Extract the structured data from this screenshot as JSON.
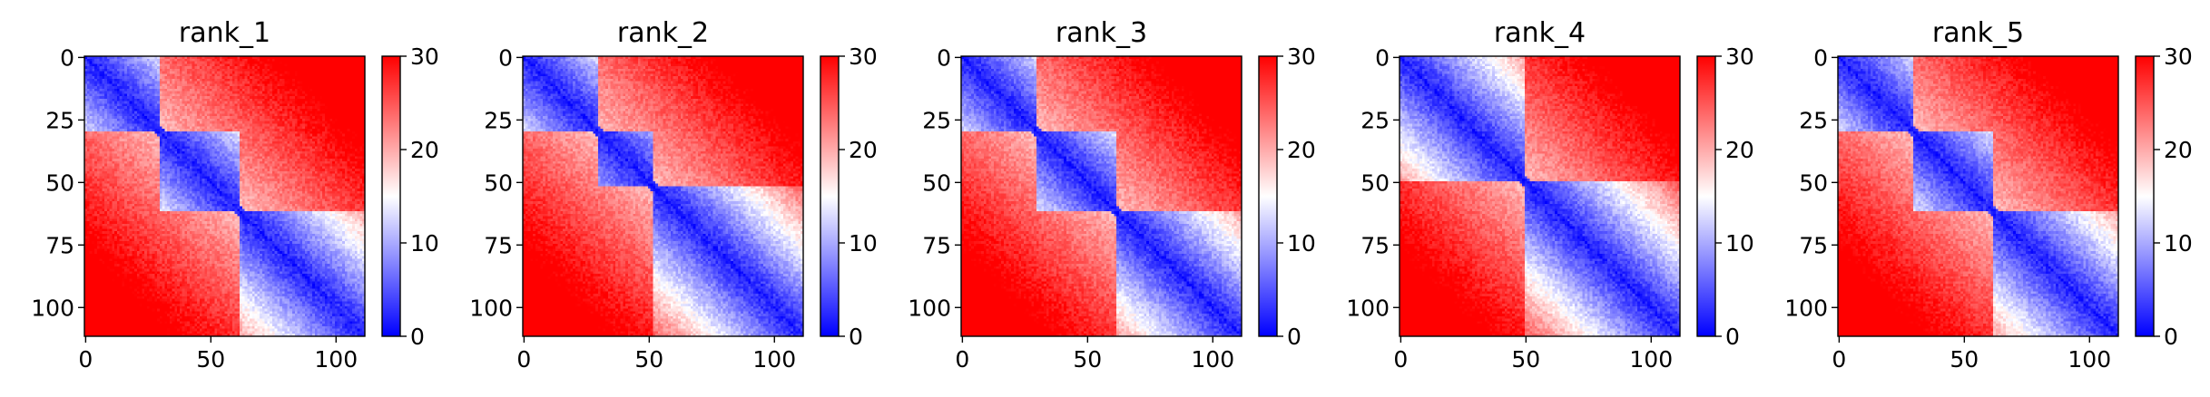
{
  "chart_data": [
    {
      "type": "heatmap",
      "title": "rank_1",
      "matrix_size": 112,
      "xticks": [
        0,
        50,
        100
      ],
      "yticks": [
        0,
        25,
        50,
        75,
        100
      ],
      "colorbar": {
        "ticks": [
          0,
          10,
          20,
          30
        ],
        "vmin": 0,
        "vmax": 30,
        "colormap": "bwr"
      },
      "diagonal_blocks": [
        [
          0,
          30
        ],
        [
          30,
          62
        ],
        [
          62,
          112
        ]
      ]
    },
    {
      "type": "heatmap",
      "title": "rank_2",
      "matrix_size": 112,
      "xticks": [
        0,
        50,
        100
      ],
      "yticks": [
        0,
        25,
        50,
        75,
        100
      ],
      "colorbar": {
        "ticks": [
          0,
          10,
          20,
          30
        ],
        "vmin": 0,
        "vmax": 30,
        "colormap": "bwr"
      },
      "diagonal_blocks": [
        [
          0,
          30
        ],
        [
          30,
          52
        ],
        [
          52,
          112
        ]
      ]
    },
    {
      "type": "heatmap",
      "title": "rank_3",
      "matrix_size": 112,
      "xticks": [
        0,
        50,
        100
      ],
      "yticks": [
        0,
        25,
        50,
        75,
        100
      ],
      "colorbar": {
        "ticks": [
          0,
          10,
          20,
          30
        ],
        "vmin": 0,
        "vmax": 30,
        "colormap": "bwr"
      },
      "diagonal_blocks": [
        [
          0,
          30
        ],
        [
          30,
          62
        ],
        [
          62,
          112
        ]
      ]
    },
    {
      "type": "heatmap",
      "title": "rank_4",
      "matrix_size": 112,
      "xticks": [
        0,
        50,
        100
      ],
      "yticks": [
        0,
        25,
        50,
        75,
        100
      ],
      "colorbar": {
        "ticks": [
          0,
          10,
          20,
          30
        ],
        "vmin": 0,
        "vmax": 30,
        "colormap": "bwr"
      },
      "diagonal_blocks": [
        [
          0,
          50
        ],
        [
          50,
          112
        ]
      ]
    },
    {
      "type": "heatmap",
      "title": "rank_5",
      "matrix_size": 112,
      "xticks": [
        0,
        50,
        100
      ],
      "yticks": [
        0,
        25,
        50,
        75,
        100
      ],
      "colorbar": {
        "ticks": [
          0,
          10,
          20,
          30
        ],
        "vmin": 0,
        "vmax": 30,
        "colormap": "bwr"
      },
      "diagonal_blocks": [
        [
          0,
          30
        ],
        [
          30,
          62
        ],
        [
          62,
          112
        ]
      ]
    }
  ]
}
